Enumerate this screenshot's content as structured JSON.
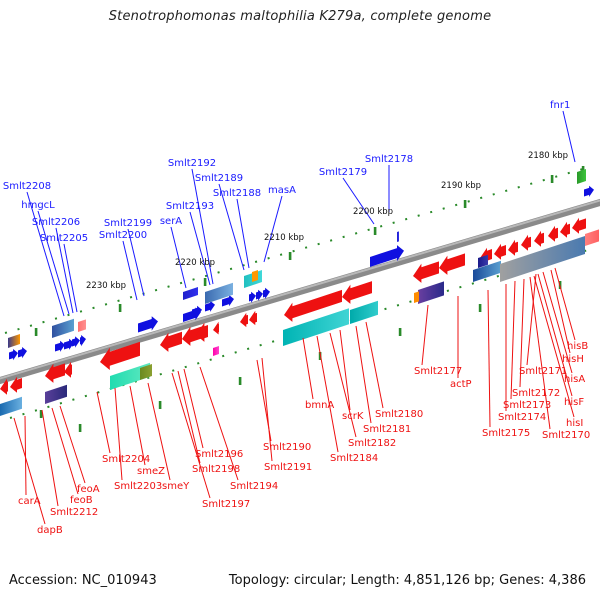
{
  "title": "Stenotrophomonas maltophilia K279a, complete genome",
  "footer": {
    "accession": "Accession: NC_010943",
    "topology": "Topology: circular; Length: 4,851,126 bp; Genes: 4,386"
  },
  "scale_labels": [
    "2180 kbp",
    "2190 kbp",
    "2200 kbp",
    "2210 kbp",
    "2220 kbp",
    "2230 kbp"
  ],
  "forward_genes": [
    "fnr1",
    "Smlt2178",
    "Smlt2179",
    "Smlt2192",
    "Smlt2189",
    "Smlt2188",
    "masA",
    "Smlt2193",
    "serA",
    "Smlt2199",
    "Smlt2200",
    "Smlt2208",
    "hmgcL",
    "Smlt2206",
    "Smlt2205"
  ],
  "reverse_genes": [
    "hisB",
    "hisH",
    "Smlt2171",
    "hisA",
    "hisF",
    "hisI",
    "Smlt2170",
    "Smlt2172",
    "Smlt2173",
    "Smlt2174",
    "Smlt2175",
    "Smlt2177",
    "actP",
    "Smlt2180",
    "Smlt2181",
    "scrK",
    "Smlt2182",
    "bmnA",
    "Smlt2184",
    "Smlt2190",
    "Smlt2191",
    "Smlt2196",
    "Smlt2198",
    "Smlt2194",
    "Smlt2197",
    "smeZ",
    "smeY",
    "Smlt2204",
    "Smlt2203",
    "feoA",
    "feoB",
    "Smlt2212",
    "carA",
    "dapB"
  ]
}
